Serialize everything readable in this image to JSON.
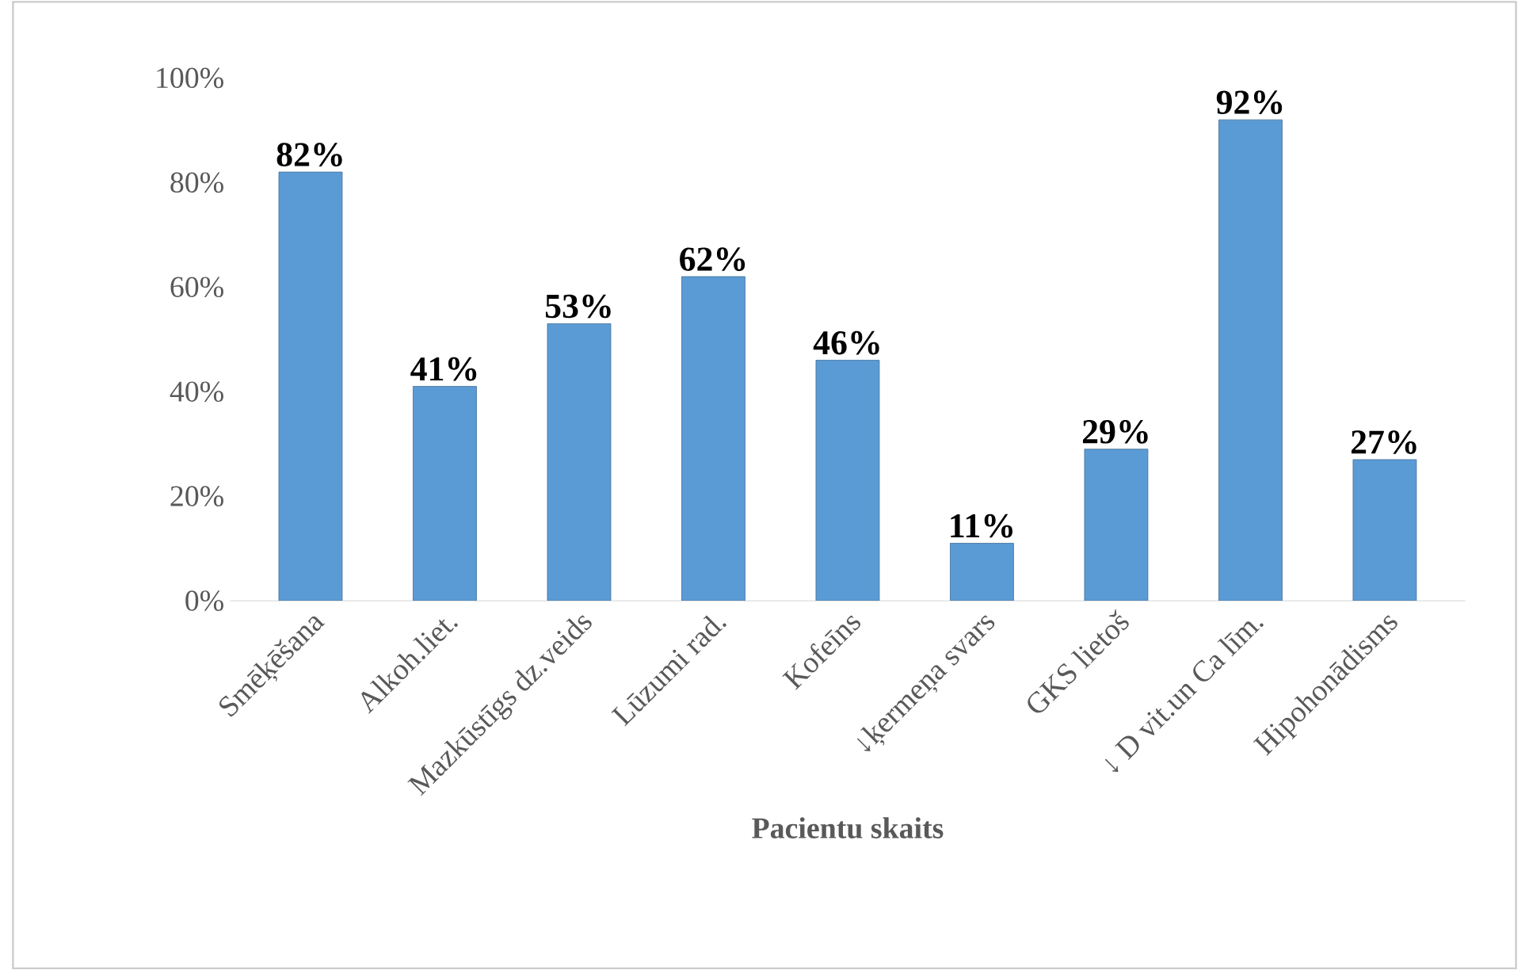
{
  "chart_data": {
    "type": "bar",
    "xlabel": "Pacientu skaits",
    "categories": [
      "Smēķēšana",
      "Alkoh.liet.",
      "Mazkūstīgs dz.veids",
      "Lūzumi rad.",
      "Kofeīns",
      "↓ķermeņa svars",
      "GKS lietoš",
      "↓ D vit.un Ca līm.",
      "Hipohonādisms"
    ],
    "values": [
      82,
      41,
      53,
      62,
      46,
      11,
      29,
      92,
      27
    ],
    "value_labels": [
      "82%",
      "41%",
      "53%",
      "62%",
      "46%",
      "11%",
      "29%",
      "92%",
      "27%"
    ],
    "color": "#5b9bd5",
    "ylim": [
      0,
      100
    ],
    "yticks": [
      {
        "value": 0,
        "label": "0%"
      },
      {
        "value": 20,
        "label": "20%"
      },
      {
        "value": 40,
        "label": "40%"
      },
      {
        "value": 60,
        "label": "60%"
      },
      {
        "value": 80,
        "label": "80%"
      },
      {
        "value": 100,
        "label": "100%"
      }
    ],
    "grid": false
  }
}
